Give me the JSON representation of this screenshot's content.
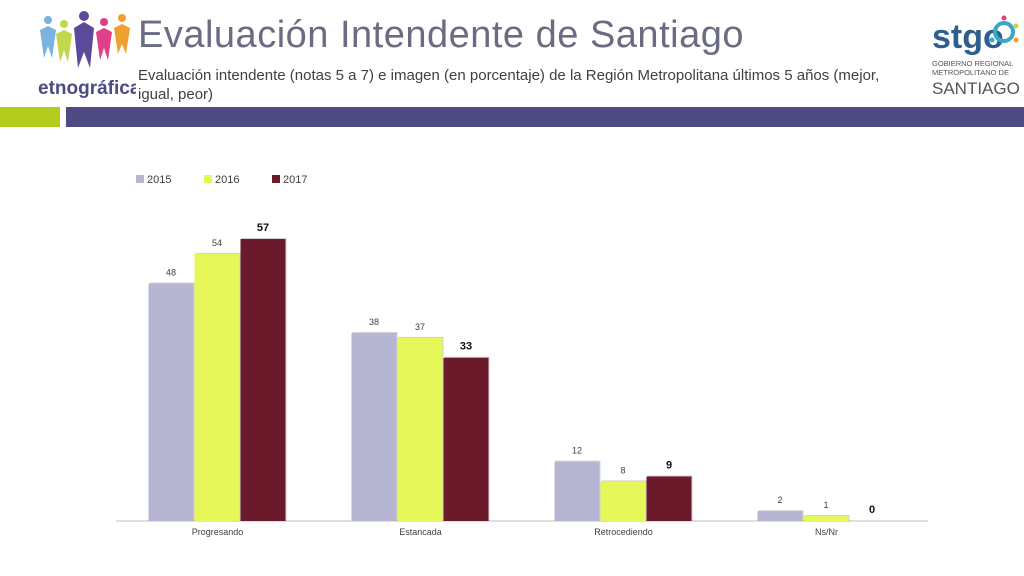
{
  "header": {
    "title": "Evaluación Intendente de Santiago",
    "subtitle": "Evaluación intendente (notas 5 a 7) e imagen (en porcentaje) de la Región Metropolitana últimos 5 años (mejor, igual, peor)"
  },
  "logos": {
    "left_text": "etnográfica",
    "right_brand": "stgo",
    "right_line1": "GOBIERNO REGIONAL",
    "right_line2": "METROPOLITANO DE",
    "right_line3": "SANTIAGO"
  },
  "colors": {
    "accent_green": "#b3cc1e",
    "accent_purple": "#4e4a84",
    "series_2015": "#b7b6d2",
    "series_2016": "#e6f75a",
    "series_2017": "#6b1a2b"
  },
  "chart_data": {
    "type": "bar",
    "categories": [
      "Progresando",
      "Estancada",
      "Retrocediendo",
      "Ns/Nr"
    ],
    "series": [
      {
        "name": "2015",
        "values": [
          48,
          38,
          12,
          2
        ]
      },
      {
        "name": "2016",
        "values": [
          54,
          37,
          8,
          1
        ]
      },
      {
        "name": "2017",
        "values": [
          57,
          33,
          9,
          0
        ]
      }
    ],
    "ylim": [
      0,
      57
    ],
    "legend": "top-left",
    "grid": false
  }
}
